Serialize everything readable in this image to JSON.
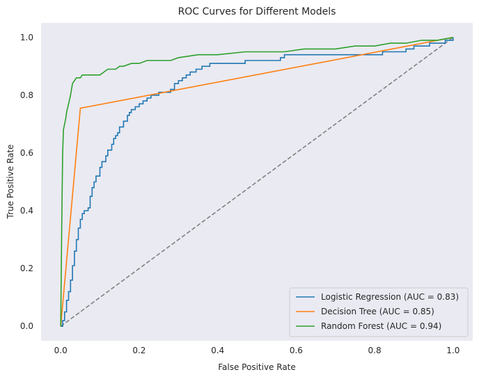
{
  "chart_data": {
    "type": "line",
    "title": "ROC Curves for Different Models",
    "xlabel": "False Positive Rate",
    "ylabel": "True Positive Rate",
    "xlim": [
      -0.05,
      1.05
    ],
    "ylim": [
      -0.05,
      1.05
    ],
    "xticks": [
      "0.0",
      "0.2",
      "0.4",
      "0.6",
      "0.8",
      "1.0"
    ],
    "yticks": [
      "0.0",
      "0.2",
      "0.4",
      "0.6",
      "0.8",
      "1.0"
    ],
    "grid": false,
    "legend_position": "lower-right",
    "background": "#eaeaf2",
    "series": [
      {
        "name": "Logistic Regression (AUC = 0.83)",
        "color": "#1f77b4",
        "step": true,
        "x": [
          0,
          0.005,
          0.01,
          0.015,
          0.02,
          0.025,
          0.03,
          0.035,
          0.04,
          0.045,
          0.05,
          0.055,
          0.06,
          0.07,
          0.075,
          0.08,
          0.085,
          0.09,
          0.1,
          0.105,
          0.115,
          0.12,
          0.13,
          0.135,
          0.14,
          0.145,
          0.15,
          0.16,
          0.17,
          0.175,
          0.18,
          0.19,
          0.2,
          0.21,
          0.22,
          0.23,
          0.24,
          0.25,
          0.265,
          0.28,
          0.29,
          0.3,
          0.31,
          0.32,
          0.33,
          0.345,
          0.36,
          0.38,
          0.4,
          0.44,
          0.47,
          0.5,
          0.55,
          0.56,
          0.57,
          0.6,
          0.7,
          0.8,
          0.82,
          0.88,
          0.9,
          0.94,
          0.98,
          1.0
        ],
        "y": [
          0,
          0.02,
          0.05,
          0.09,
          0.12,
          0.16,
          0.21,
          0.26,
          0.3,
          0.34,
          0.37,
          0.39,
          0.4,
          0.41,
          0.45,
          0.48,
          0.5,
          0.52,
          0.55,
          0.57,
          0.59,
          0.61,
          0.63,
          0.65,
          0.66,
          0.67,
          0.69,
          0.71,
          0.73,
          0.74,
          0.75,
          0.76,
          0.77,
          0.78,
          0.79,
          0.8,
          0.8,
          0.81,
          0.81,
          0.82,
          0.84,
          0.85,
          0.86,
          0.87,
          0.88,
          0.89,
          0.9,
          0.91,
          0.91,
          0.91,
          0.92,
          0.92,
          0.92,
          0.93,
          0.94,
          0.94,
          0.94,
          0.94,
          0.95,
          0.96,
          0.97,
          0.98,
          0.99,
          1.0
        ]
      },
      {
        "name": "Decision Tree (AUC = 0.85)",
        "color": "#ff7f0e",
        "step": false,
        "x": [
          0,
          0.05,
          1.0
        ],
        "y": [
          0,
          0.755,
          1.0
        ]
      },
      {
        "name": "Random Forest (AUC = 0.94)",
        "color": "#2ca02c",
        "step": false,
        "x": [
          0,
          0.003,
          0.005,
          0.007,
          0.01,
          0.013,
          0.015,
          0.02,
          0.025,
          0.03,
          0.035,
          0.04,
          0.05,
          0.055,
          0.065,
          0.07,
          0.08,
          0.1,
          0.11,
          0.12,
          0.14,
          0.15,
          0.16,
          0.18,
          0.2,
          0.22,
          0.25,
          0.28,
          0.3,
          0.35,
          0.4,
          0.47,
          0.5,
          0.57,
          0.62,
          0.7,
          0.75,
          0.8,
          0.84,
          0.88,
          0.92,
          0.96,
          1.0
        ],
        "y": [
          0,
          0.4,
          0.6,
          0.68,
          0.7,
          0.72,
          0.74,
          0.77,
          0.8,
          0.84,
          0.85,
          0.86,
          0.86,
          0.87,
          0.87,
          0.87,
          0.87,
          0.87,
          0.88,
          0.89,
          0.89,
          0.9,
          0.9,
          0.91,
          0.91,
          0.92,
          0.92,
          0.92,
          0.93,
          0.94,
          0.94,
          0.95,
          0.95,
          0.95,
          0.96,
          0.96,
          0.97,
          0.97,
          0.98,
          0.98,
          0.99,
          0.99,
          1.0
        ]
      },
      {
        "name": "",
        "color": "#808080",
        "dashed": true,
        "x": [
          0,
          1
        ],
        "y": [
          0,
          1
        ]
      }
    ]
  }
}
